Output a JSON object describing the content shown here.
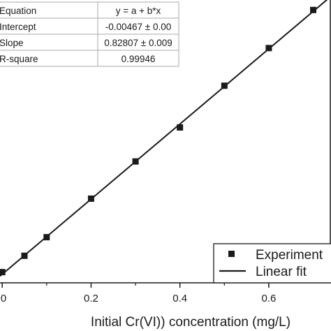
{
  "chart_data": {
    "type": "scatter",
    "title": "",
    "xlabel": "Initial Cr(VI)) concentration (mg/L)",
    "ylabel": "",
    "xlim": [
      -0.005,
      0.74
    ],
    "ylim": [
      -0.0236,
      0.6
    ],
    "x_ticks": [
      "0",
      "0.2",
      "0.4",
      "0.6"
    ],
    "x_tick_values": [
      0,
      0.2,
      0.4,
      0.6
    ],
    "series": [
      {
        "name": "Experiment",
        "kind": "scatter",
        "x": [
          0,
          0.05,
          0.1,
          0.2,
          0.3,
          0.4,
          0.5,
          0.6,
          0.7
        ],
        "y": [
          0,
          0.036,
          0.077,
          0.162,
          0.244,
          0.319,
          0.411,
          0.494,
          0.578
        ]
      },
      {
        "name": "Linear fit",
        "kind": "line",
        "x": [
          -0.005,
          0.74
        ],
        "y": [
          -0.00881,
          0.60811
        ]
      }
    ],
    "legend": {
      "position": "bottom-right",
      "entries": [
        {
          "label": "Experiment",
          "marker": "square"
        },
        {
          "label": "Linear fit",
          "marker": "line"
        }
      ]
    },
    "stats_table": {
      "rows": [
        {
          "label": "Equation",
          "value": "y = a + b*x"
        },
        {
          "label": "Intercept",
          "value": "-0.00467 ± 0.00"
        },
        {
          "label": "Slope",
          "value": "0.82807 ± 0.009"
        },
        {
          "label": "R-square",
          "value": "0.99946"
        }
      ]
    },
    "colors": {
      "marker": "#1a1a1a",
      "line": "#1a1a1a",
      "axis": "#1a1a1a",
      "table_border": "#aaaaaa"
    }
  }
}
